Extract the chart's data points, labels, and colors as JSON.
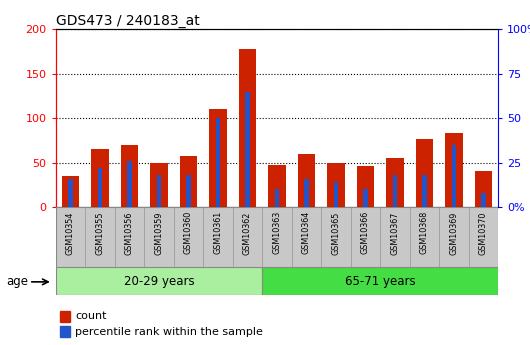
{
  "title": "GDS473 / 240183_at",
  "samples": [
    "GSM10354",
    "GSM10355",
    "GSM10356",
    "GSM10359",
    "GSM10360",
    "GSM10361",
    "GSM10362",
    "GSM10363",
    "GSM10364",
    "GSM10365",
    "GSM10366",
    "GSM10367",
    "GSM10368",
    "GSM10369",
    "GSM10370"
  ],
  "counts": [
    35,
    65,
    70,
    50,
    57,
    110,
    178,
    47,
    60,
    50,
    46,
    55,
    77,
    83,
    40
  ],
  "percentile_ranks": [
    16,
    22,
    26,
    18,
    18,
    50,
    65,
    10,
    16,
    14,
    10,
    18,
    18,
    35,
    8
  ],
  "group1_label": "20-29 years",
  "group1_count": 7,
  "group2_label": "65-71 years",
  "group2_count": 8,
  "age_label": "age",
  "ylim_left": [
    0,
    200
  ],
  "ylim_right": [
    0,
    100
  ],
  "yticks_left": [
    0,
    50,
    100,
    150,
    200
  ],
  "yticks_right": [
    0,
    25,
    50,
    75,
    100
  ],
  "ytick_labels_right": [
    "0%",
    "25",
    "50",
    "75",
    "100%"
  ],
  "ytick_labels_left": [
    "0",
    "50",
    "100",
    "150",
    "200"
  ],
  "bar_color": "#cc2200",
  "pct_color": "#2255cc",
  "group_bg_color1": "#aaeea0",
  "group_bg_color2": "#44dd44",
  "tick_bg_color": "#c8c8c8",
  "legend_count_label": "count",
  "legend_pct_label": "percentile rank within the sample"
}
